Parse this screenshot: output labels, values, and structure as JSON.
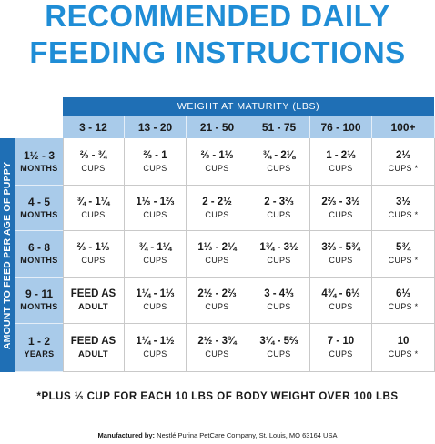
{
  "title": {
    "line1": "RECOMMENDED DAILY",
    "line2": "FEEDING INSTRUCTIONS"
  },
  "table": {
    "weight_header": "WEIGHT AT MATURITY (LBS)",
    "age_header": "AMOUNT TO FEED PER AGE OF PUPPY",
    "weight_columns": [
      "3 - 12",
      "13 - 20",
      "21 - 50",
      "51 - 75",
      "76 - 100",
      "100+"
    ],
    "rows": [
      {
        "age": "1½ - 3",
        "age_unit": "MONTHS",
        "cells": [
          {
            "value": "⅔ - ¾",
            "unit": "CUPS"
          },
          {
            "value": "⅔ - 1",
            "unit": "CUPS"
          },
          {
            "value": "⅔ - 1⅓",
            "unit": "CUPS"
          },
          {
            "value": "¾ - 2⅛",
            "unit": "CUPS"
          },
          {
            "value": "1 - 2⅓",
            "unit": "CUPS"
          },
          {
            "value": "2⅓",
            "unit": "CUPS *"
          }
        ]
      },
      {
        "age": "4 - 5",
        "age_unit": "MONTHS",
        "cells": [
          {
            "value": "¾ - 1¼",
            "unit": "CUPS"
          },
          {
            "value": "1⅓ - 1⅔",
            "unit": "CUPS"
          },
          {
            "value": "2 - 2½",
            "unit": "CUPS"
          },
          {
            "value": "2 - 3⅔",
            "unit": "CUPS"
          },
          {
            "value": "2⅔ - 3½",
            "unit": "CUPS"
          },
          {
            "value": "3½",
            "unit": "CUPS *"
          }
        ]
      },
      {
        "age": "6 - 8",
        "age_unit": "MONTHS",
        "cells": [
          {
            "value": "⅔ - 1⅓",
            "unit": "CUPS"
          },
          {
            "value": "¾ - 1¼",
            "unit": "CUPS"
          },
          {
            "value": "1⅓ - 2¼",
            "unit": "CUPS"
          },
          {
            "value": "1¾ - 3½",
            "unit": "CUPS"
          },
          {
            "value": "3⅔ - 5¾",
            "unit": "CUPS"
          },
          {
            "value": "5¾",
            "unit": "CUPS *"
          }
        ]
      },
      {
        "age": "9 - 11",
        "age_unit": "MONTHS",
        "cells": [
          {
            "value": "FEED AS",
            "unit": "ADULT"
          },
          {
            "value": "1¼ - 1⅓",
            "unit": "CUPS"
          },
          {
            "value": "2½ - 2⅔",
            "unit": "CUPS"
          },
          {
            "value": "3 - 4⅓",
            "unit": "CUPS"
          },
          {
            "value": "4¾ - 6⅓",
            "unit": "CUPS"
          },
          {
            "value": "6⅓",
            "unit": "CUPS *"
          }
        ]
      },
      {
        "age": "1 - 2",
        "age_unit": "YEARS",
        "cells": [
          {
            "value": "FEED AS",
            "unit": "ADULT"
          },
          {
            "value": "1¼ - 1½",
            "unit": "CUPS"
          },
          {
            "value": "2½ - 3¾",
            "unit": "CUPS"
          },
          {
            "value": "3¼ - 5⅔",
            "unit": "CUPS"
          },
          {
            "value": "7 - 10",
            "unit": "CUPS"
          },
          {
            "value": "10",
            "unit": "CUPS *"
          }
        ]
      }
    ]
  },
  "footnote": "*PLUS ⅓ CUP FOR EACH 10 LBS OF BODY WEIGHT OVER 100 LBS",
  "manufacturer": {
    "label": "Manufactured by:",
    "text": "Nestlé Purina PetCare Company, St. Louis, MO 63164 USA"
  },
  "colors": {
    "title": "#1f8dd6",
    "header_dark": "#1f6fb5",
    "header_light": "#a9cbea"
  }
}
